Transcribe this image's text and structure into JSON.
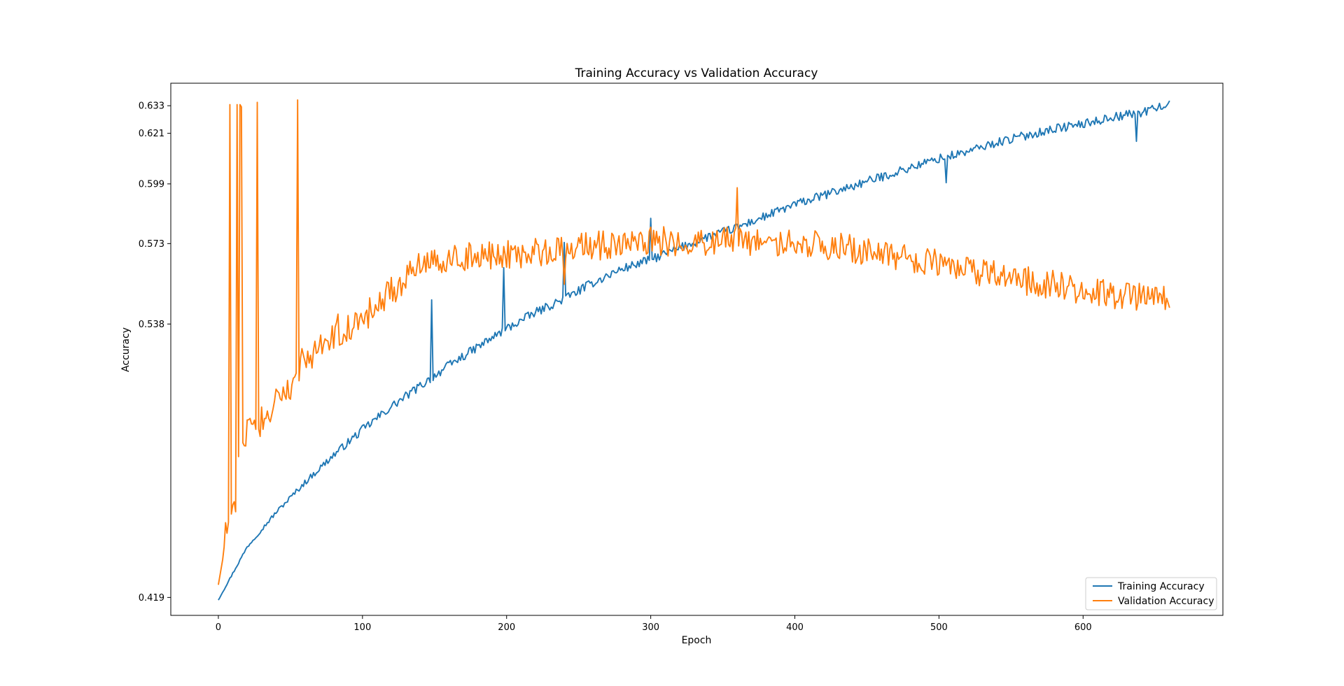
{
  "chart_data": {
    "type": "line",
    "title": "Training Accuracy vs Validation Accuracy",
    "xlabel": "Epoch",
    "ylabel": "Accuracy",
    "xlim": [
      -33,
      697
    ],
    "ylim": [
      0.4112,
      0.6428
    ],
    "xticks": [
      0,
      100,
      200,
      300,
      400,
      500,
      600
    ],
    "yticks": [
      0.419,
      0.538,
      0.573,
      0.599,
      0.621,
      0.633
    ],
    "ytick_labels": [
      "0.419",
      "0.538",
      "0.573",
      "0.599",
      "0.621",
      "0.633"
    ],
    "grid": false,
    "legend_position": "lower right",
    "n_epochs": 661,
    "series": [
      {
        "name": "Training Accuracy",
        "color": "#1f77b4",
        "shape": "smooth",
        "anchors": [
          [
            0,
            0.418
          ],
          [
            20,
            0.441
          ],
          [
            40,
            0.456
          ],
          [
            60,
            0.469
          ],
          [
            80,
            0.481
          ],
          [
            100,
            0.492
          ],
          [
            120,
            0.502
          ],
          [
            140,
            0.511
          ],
          [
            160,
            0.52
          ],
          [
            180,
            0.528
          ],
          [
            200,
            0.536
          ],
          [
            220,
            0.543
          ],
          [
            240,
            0.549
          ],
          [
            260,
            0.556
          ],
          [
            280,
            0.562
          ],
          [
            300,
            0.566
          ],
          [
            320,
            0.571
          ],
          [
            340,
            0.576
          ],
          [
            360,
            0.58
          ],
          [
            380,
            0.585
          ],
          [
            400,
            0.59
          ],
          [
            420,
            0.594
          ],
          [
            440,
            0.598
          ],
          [
            460,
            0.602
          ],
          [
            480,
            0.606
          ],
          [
            500,
            0.61
          ],
          [
            520,
            0.613
          ],
          [
            540,
            0.617
          ],
          [
            560,
            0.62
          ],
          [
            580,
            0.623
          ],
          [
            600,
            0.625
          ],
          [
            620,
            0.628
          ],
          [
            640,
            0.63
          ],
          [
            660,
            0.634
          ]
        ],
        "noise": 0.0012,
        "dips": [
          [
            148,
            0.5485
          ],
          [
            198,
            0.5625
          ],
          [
            240,
            0.5735
          ],
          [
            300,
            0.584
          ],
          [
            505,
            0.5995
          ],
          [
            637,
            0.6175
          ]
        ]
      },
      {
        "name": "Validation Accuracy",
        "color": "#ff7f0e",
        "shape": "noisy",
        "anchors": [
          [
            0,
            0.4245
          ],
          [
            3,
            0.4355
          ],
          [
            6,
            0.452
          ],
          [
            9,
            0.4545
          ],
          [
            10,
            0.4555
          ],
          [
            15,
            0.476
          ],
          [
            20,
            0.49
          ],
          [
            25,
            0.493
          ],
          [
            30,
            0.496
          ],
          [
            40,
            0.505
          ],
          [
            50,
            0.511
          ],
          [
            60,
            0.521
          ],
          [
            70,
            0.529
          ],
          [
            80,
            0.532
          ],
          [
            90,
            0.536
          ],
          [
            100,
            0.54
          ],
          [
            120,
            0.552
          ],
          [
            140,
            0.565
          ],
          [
            160,
            0.567
          ],
          [
            180,
            0.567
          ],
          [
            200,
            0.568
          ],
          [
            220,
            0.569
          ],
          [
            240,
            0.571
          ],
          [
            260,
            0.572
          ],
          [
            280,
            0.573
          ],
          [
            300,
            0.574
          ],
          [
            320,
            0.574
          ],
          [
            340,
            0.574
          ],
          [
            360,
            0.574
          ],
          [
            380,
            0.573
          ],
          [
            400,
            0.573
          ],
          [
            420,
            0.572
          ],
          [
            440,
            0.571
          ],
          [
            460,
            0.569
          ],
          [
            480,
            0.567
          ],
          [
            500,
            0.564
          ],
          [
            520,
            0.561
          ],
          [
            540,
            0.559
          ],
          [
            560,
            0.557
          ],
          [
            580,
            0.555
          ],
          [
            600,
            0.553
          ],
          [
            620,
            0.551
          ],
          [
            640,
            0.55
          ],
          [
            660,
            0.549
          ]
        ],
        "noise": 0.004,
        "spikes": [
          [
            8,
            0.6335
          ],
          [
            13,
            0.6335
          ],
          [
            15,
            0.6335
          ],
          [
            16,
            0.6325
          ],
          [
            27,
            0.6345
          ],
          [
            55,
            0.6355
          ]
        ],
        "troughs": [
          [
            9,
            0.4553
          ],
          [
            12,
            0.4563
          ],
          [
            14,
            0.4803
          ],
          [
            17,
            0.4863
          ],
          [
            28,
            0.4923
          ],
          [
            56,
            0.5133
          ],
          [
            58,
            0.5273
          ],
          [
            83,
            0.5423
          ],
          [
            120,
            0.5583
          ],
          [
            240,
            0.5553
          ],
          [
            360,
            0.5973
          ]
        ]
      }
    ]
  }
}
